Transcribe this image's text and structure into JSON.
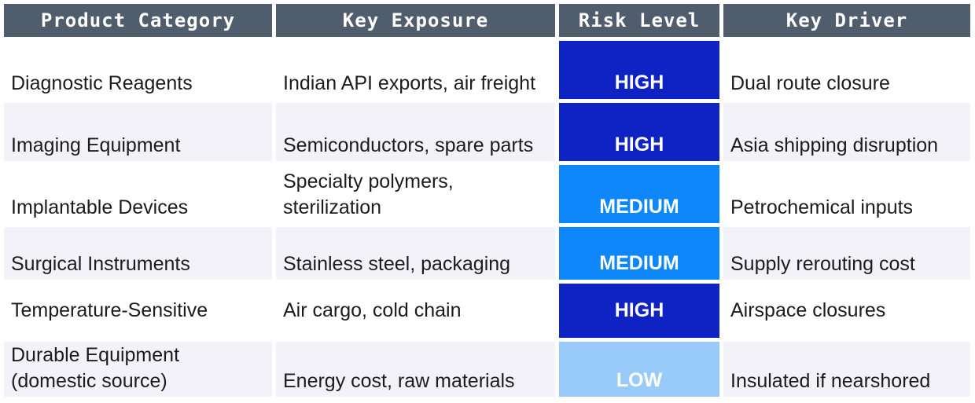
{
  "header": {
    "col1": "Product Category",
    "col2": "Key Exposure",
    "col3": "Risk Level",
    "col4": "Key Driver"
  },
  "rows": [
    {
      "category": "Diagnostic Reagents",
      "exposure": "Indian API exports, air freight",
      "risk": "HIGH",
      "driver": "Dual route closure"
    },
    {
      "category": "Imaging Equipment",
      "exposure": "Semiconductors, spare parts",
      "risk": "HIGH",
      "driver": "Asia shipping disruption"
    },
    {
      "category": "Implantable Devices",
      "exposure": "Specialty polymers, sterilization",
      "risk": "MEDIUM",
      "driver": "Petrochemical inputs"
    },
    {
      "category": "Surgical Instruments",
      "exposure": "Stainless steel, packaging",
      "risk": "MEDIUM",
      "driver": "Supply rerouting cost"
    },
    {
      "category": "Temperature-Sensitive",
      "exposure": "Air cargo, cold chain",
      "risk": "HIGH",
      "driver": "Airspace closures"
    },
    {
      "category": "Durable Equipment (domestic source)",
      "exposure": "Energy cost, raw materials",
      "risk": "LOW",
      "driver": "Insulated if nearshored"
    }
  ],
  "colors": {
    "header_bg": "#4f5d6d",
    "high": "#0f23c4",
    "medium": "#0e87fb",
    "low": "#98cbfa",
    "alt_row": "#f2f2f8"
  }
}
